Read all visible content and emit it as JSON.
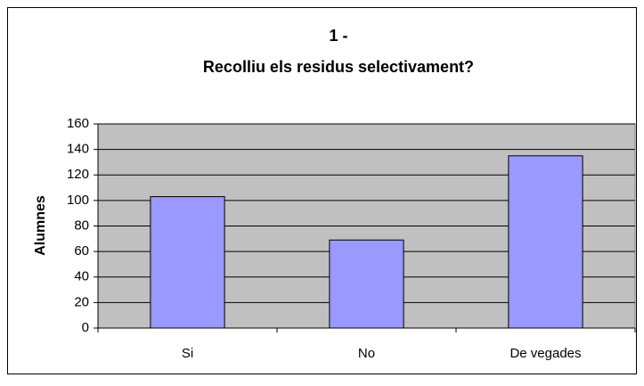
{
  "chart_data": {
    "type": "bar",
    "title": [
      "1 -",
      "Recolliu els residus selectivament?"
    ],
    "ylabel": "Alumnes",
    "categories": [
      "Si",
      "No",
      "De vegades"
    ],
    "values": [
      103,
      69,
      135
    ],
    "color": "#9999ff",
    "ylim": [
      0,
      160
    ],
    "yticks": [
      0,
      20,
      40,
      60,
      80,
      100,
      120,
      140,
      160
    ],
    "grid": true
  }
}
